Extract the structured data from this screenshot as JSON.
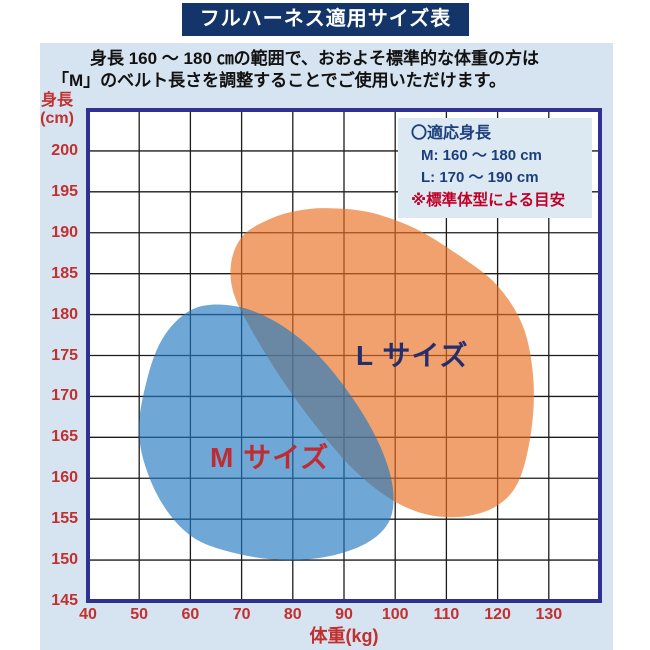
{
  "title": "フルハーネス適用サイズ表",
  "subtitle": {
    "line1": "身長 160 ～ 180 ㎝の範囲で、おおよそ標準的な体重の方は",
    "line2": "「M」のベルト長さを調整することでご使用いただけます。"
  },
  "legend": {
    "title": "〇適応身長",
    "items": [
      {
        "label": "M: 160 ～ 180 cm"
      },
      {
        "label": "L: 170 ～ 190 cm"
      }
    ],
    "note": "※標準体型による目安"
  },
  "colors": {
    "page_background": "#ffffff",
    "panel_background": "#d5e4f0",
    "title_bar": "#143569",
    "title_text": "#ffffff",
    "chart_frame": "#2e3192",
    "grid_line": "#1c1c1c",
    "axis_text_red": "#c22f2f",
    "legend_background": "#dde9f2",
    "legend_text_navy": "#1b3e7c",
    "legend_note_red": "#c10027",
    "m_region_blue": "#2279c0",
    "l_region_orange": "#e86e1e",
    "m_label_red": "#bf2b30",
    "l_label_navy": "#252e6d"
  },
  "chart_data": {
    "type": "area",
    "title": "フルハーネス適用サイズ表",
    "xlabel": "体重(kg)",
    "ylabel_line1": "身長",
    "ylabel_line2": "(cm)",
    "x_range": [
      40,
      140
    ],
    "y_range": [
      145,
      205
    ],
    "x_ticks": [
      40,
      50,
      60,
      70,
      80,
      90,
      100,
      110,
      120,
      130
    ],
    "y_ticks": [
      200,
      195,
      190,
      185,
      180,
      175,
      170,
      165,
      160,
      155,
      150,
      145
    ],
    "grid": true,
    "regions": [
      {
        "name": "L",
        "label": "L サイズ",
        "fill": "#e86e1e",
        "fill_opacity": 0.65,
        "applicable_height_cm": [
          170,
          190
        ],
        "points_kg_cm": [
          [
            87,
            193
          ],
          [
            95,
            192.5
          ],
          [
            104,
            190.5
          ],
          [
            113,
            187
          ],
          [
            120,
            183.5
          ],
          [
            125,
            178.5
          ],
          [
            127,
            172
          ],
          [
            126.5,
            165.5
          ],
          [
            124,
            159.5
          ],
          [
            119.5,
            156.5
          ],
          [
            113,
            155.3
          ],
          [
            106,
            155.6
          ],
          [
            99,
            157.5
          ],
          [
            92,
            161
          ],
          [
            85,
            166
          ],
          [
            78.5,
            171.5
          ],
          [
            72.5,
            177.5
          ],
          [
            68.5,
            182.5
          ],
          [
            68,
            186.5
          ],
          [
            70.5,
            189.8
          ],
          [
            76,
            191.8
          ],
          [
            81,
            192.7
          ]
        ]
      },
      {
        "name": "M",
        "label": "M サイズ",
        "fill": "#2279c0",
        "fill_opacity": 0.65,
        "applicable_height_cm": [
          160,
          180
        ],
        "points_kg_cm": [
          [
            50,
            165
          ],
          [
            51.5,
            172
          ],
          [
            55,
            177.5
          ],
          [
            61,
            180.8
          ],
          [
            69,
            181
          ],
          [
            77,
            179
          ],
          [
            85,
            175
          ],
          [
            92,
            169.5
          ],
          [
            97,
            164
          ],
          [
            99.5,
            159
          ],
          [
            99,
            155
          ],
          [
            95,
            152.3
          ],
          [
            88,
            150.6
          ],
          [
            79,
            150
          ],
          [
            69,
            150.8
          ],
          [
            60,
            153
          ],
          [
            53.5,
            158
          ]
        ]
      }
    ]
  }
}
